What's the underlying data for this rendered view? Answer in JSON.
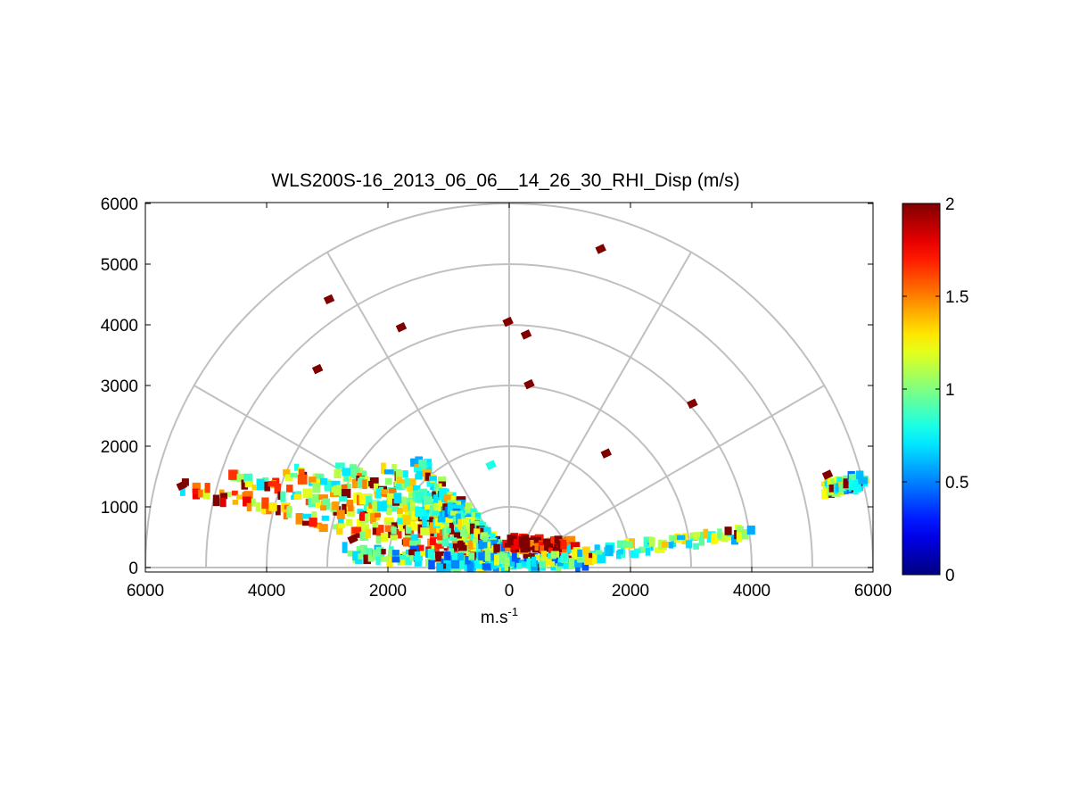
{
  "chart_data": {
    "type": "heatmap",
    "subtype": "polar-rhi",
    "title": "WLS200S-16_2013_06_06__14_26_30_RHI_Disp (m/s)",
    "xlabel": "m.s",
    "xlabel_superscript": "-1",
    "ylabel": "",
    "xlim": [
      -6000,
      6000
    ],
    "ylim": [
      0,
      6000
    ],
    "x_tick_labels": [
      "6000",
      "4000",
      "2000",
      "0",
      "2000",
      "4000",
      "6000"
    ],
    "y_tick_labels": [
      "0",
      "1000",
      "2000",
      "3000",
      "4000",
      "5000",
      "6000"
    ],
    "polar_grid": {
      "range_rings": [
        1000,
        2000,
        3000,
        4000,
        5000,
        6000
      ],
      "spoke_angles_deg": [
        0,
        30,
        60,
        90,
        120,
        150,
        180
      ]
    },
    "colorbar": {
      "colormap": "jet",
      "limits": [
        0,
        2
      ],
      "tick_labels": [
        "0",
        "0.5",
        "1",
        "1.5",
        "2"
      ]
    },
    "grid": true,
    "sectors": [
      {
        "x0": -5350,
        "y0": 1330,
        "x1": -400,
        "y1": 100,
        "v": 1.4
      },
      {
        "x0": -4500,
        "y0": 1530,
        "x1": -300,
        "y1": 200,
        "v": 1.3
      },
      {
        "x0": -3600,
        "y0": 1580,
        "x1": -280,
        "y1": 250,
        "v": 1.2
      },
      {
        "x0": -2800,
        "y0": 1600,
        "x1": -250,
        "y1": 300,
        "v": 1.1
      },
      {
        "x0": -2000,
        "y0": 1580,
        "x1": -230,
        "y1": 350,
        "v": 1.0
      },
      {
        "x0": -1500,
        "y0": 1700,
        "x1": -200,
        "y1": 330,
        "v": 1.0
      },
      {
        "x0": -1000,
        "y0": 1000,
        "x1": -150,
        "y1": 250,
        "v": 0.9
      },
      {
        "x0": -2600,
        "y0": 230,
        "x1": -100,
        "y1": 80,
        "v": 0.85
      },
      {
        "x0": -1200,
        "y0": 100,
        "x1": 1200,
        "y1": 100,
        "v": 0.8
      },
      {
        "x0": 0,
        "y0": 380,
        "x1": 1000,
        "y1": 380,
        "v": 1.9
      },
      {
        "x0": 200,
        "y0": 80,
        "x1": 3950,
        "y1": 560,
        "v": 1.0
      },
      {
        "x0": 5250,
        "y0": 1280,
        "x1": 5800,
        "y1": 1430,
        "v": 0.9
      }
    ],
    "isolated_points": [
      {
        "x": -5400,
        "y": 1350,
        "v": 2
      },
      {
        "x": -2970,
        "y": 4420,
        "v": 2
      },
      {
        "x": -3160,
        "y": 3270,
        "v": 2
      },
      {
        "x": -1780,
        "y": 3960,
        "v": 2
      },
      {
        "x": -20,
        "y": 4050,
        "v": 2
      },
      {
        "x": 280,
        "y": 3840,
        "v": 2
      },
      {
        "x": 330,
        "y": 3020,
        "v": 2
      },
      {
        "x": 1510,
        "y": 5250,
        "v": 2
      },
      {
        "x": 3020,
        "y": 2700,
        "v": 2
      },
      {
        "x": 1600,
        "y": 1880,
        "v": 2
      },
      {
        "x": -300,
        "y": 1690,
        "v": 0.8
      },
      {
        "x": 5250,
        "y": 1530,
        "v": 2
      },
      {
        "x": -2580,
        "y": 470,
        "v": 2
      }
    ]
  }
}
